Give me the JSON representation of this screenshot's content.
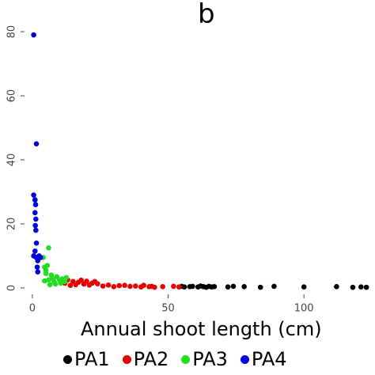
{
  "chart_data": {
    "type": "scatter",
    "title": "b",
    "xlabel": "Annual shoot length (cm)",
    "ylabel": "",
    "xlim": [
      -2,
      125
    ],
    "ylim": [
      -1.5,
      82
    ],
    "x_ticks": [
      "0",
      "50",
      "100"
    ],
    "y_ticks": [
      "0",
      "20",
      "40",
      "60",
      "80"
    ],
    "legend_position": "bottom",
    "series": [
      {
        "name": "PA1",
        "color": "#000000",
        "points": [
          [
            55,
            0.5
          ],
          [
            56,
            0.3
          ],
          [
            58,
            0.4
          ],
          [
            59,
            0.5
          ],
          [
            61,
            0.3
          ],
          [
            62,
            0.6
          ],
          [
            63,
            0.4
          ],
          [
            64,
            0.2
          ],
          [
            65,
            0.5
          ],
          [
            66,
            0.3
          ],
          [
            67,
            0.4
          ],
          [
            72,
            0.3
          ],
          [
            74,
            0.5
          ],
          [
            78,
            0.4
          ],
          [
            84,
            0.2
          ],
          [
            89,
            0.5
          ],
          [
            100,
            0.3
          ],
          [
            112,
            0.4
          ],
          [
            118,
            0.2
          ],
          [
            121,
            0.3
          ],
          [
            123,
            0.2
          ]
        ]
      },
      {
        "name": "PA2",
        "color": "#e60000",
        "points": [
          [
            12,
            1.5
          ],
          [
            13,
            2.5
          ],
          [
            14,
            0.8
          ],
          [
            15,
            2.0
          ],
          [
            16,
            1.0
          ],
          [
            17,
            1.8
          ],
          [
            18,
            2.4
          ],
          [
            19,
            1.2
          ],
          [
            20,
            2.1
          ],
          [
            21,
            0.9
          ],
          [
            22,
            1.5
          ],
          [
            23,
            2.0
          ],
          [
            24,
            1.3
          ],
          [
            26,
            0.6
          ],
          [
            28,
            0.9
          ],
          [
            30,
            0.4
          ],
          [
            32,
            0.7
          ],
          [
            34,
            0.8
          ],
          [
            36,
            0.5
          ],
          [
            38,
            0.6
          ],
          [
            40,
            0.3
          ],
          [
            41,
            0.8
          ],
          [
            43,
            0.4
          ],
          [
            44,
            0.5
          ],
          [
            45,
            0.2
          ],
          [
            48,
            0.4
          ],
          [
            52,
            0.5
          ],
          [
            54,
            0.3
          ]
        ]
      },
      {
        "name": "PA3",
        "color": "#22dd22",
        "points": [
          [
            4,
            9.5
          ],
          [
            4.5,
            6.5
          ],
          [
            5,
            5.5
          ],
          [
            5.5,
            7.0
          ],
          [
            6,
            12.5
          ],
          [
            5,
            4.5
          ],
          [
            6,
            2.5
          ],
          [
            7,
            4.0
          ],
          [
            7.5,
            3.0
          ],
          [
            8,
            2.0
          ],
          [
            8.5,
            1.2
          ],
          [
            9,
            3.5
          ],
          [
            10,
            2.5
          ],
          [
            10.5,
            1.5
          ],
          [
            11,
            2.8
          ],
          [
            12,
            2.0
          ],
          [
            12.5,
            3.2
          ],
          [
            6.5,
            1.0
          ],
          [
            4.5,
            2.2
          ]
        ]
      },
      {
        "name": "PA4",
        "color": "#0000dd",
        "points": [
          [
            0.5,
            79
          ],
          [
            1.5,
            45
          ],
          [
            0.5,
            29
          ],
          [
            1,
            27.5
          ],
          [
            1.2,
            26
          ],
          [
            1,
            23.5
          ],
          [
            1.3,
            21.5
          ],
          [
            1.1,
            19.5
          ],
          [
            1.3,
            18
          ],
          [
            1.5,
            14
          ],
          [
            1,
            11.5
          ],
          [
            0.5,
            10
          ],
          [
            1.5,
            9.5
          ],
          [
            2,
            8.5
          ],
          [
            2.5,
            10
          ],
          [
            3,
            9.5
          ],
          [
            1.8,
            6.5
          ],
          [
            2,
            5
          ]
        ]
      }
    ]
  }
}
